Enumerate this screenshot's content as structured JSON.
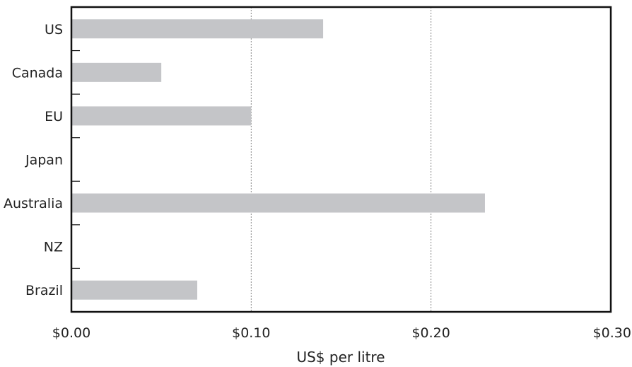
{
  "chart_data": {
    "type": "bar",
    "orientation": "horizontal",
    "categories": [
      "US",
      "Canada",
      "EU",
      "Japan",
      "Australia",
      "NZ",
      "Brazil"
    ],
    "values": [
      0.14,
      0.05,
      0.1,
      0,
      0.23,
      0,
      0.07
    ],
    "title": "",
    "xlabel": "US$ per litre",
    "ylabel": "",
    "xlim": [
      0,
      0.3
    ],
    "xticks": [
      0,
      0.1,
      0.2,
      0.3
    ],
    "xtick_labels": [
      "$0.00",
      "$0.10",
      "$0.20",
      "$0.30"
    ],
    "grid": "vertical dashed at major ticks",
    "colors": {
      "bar": "#c4c5c8",
      "frame": "#111111",
      "grid": "#888888"
    }
  }
}
